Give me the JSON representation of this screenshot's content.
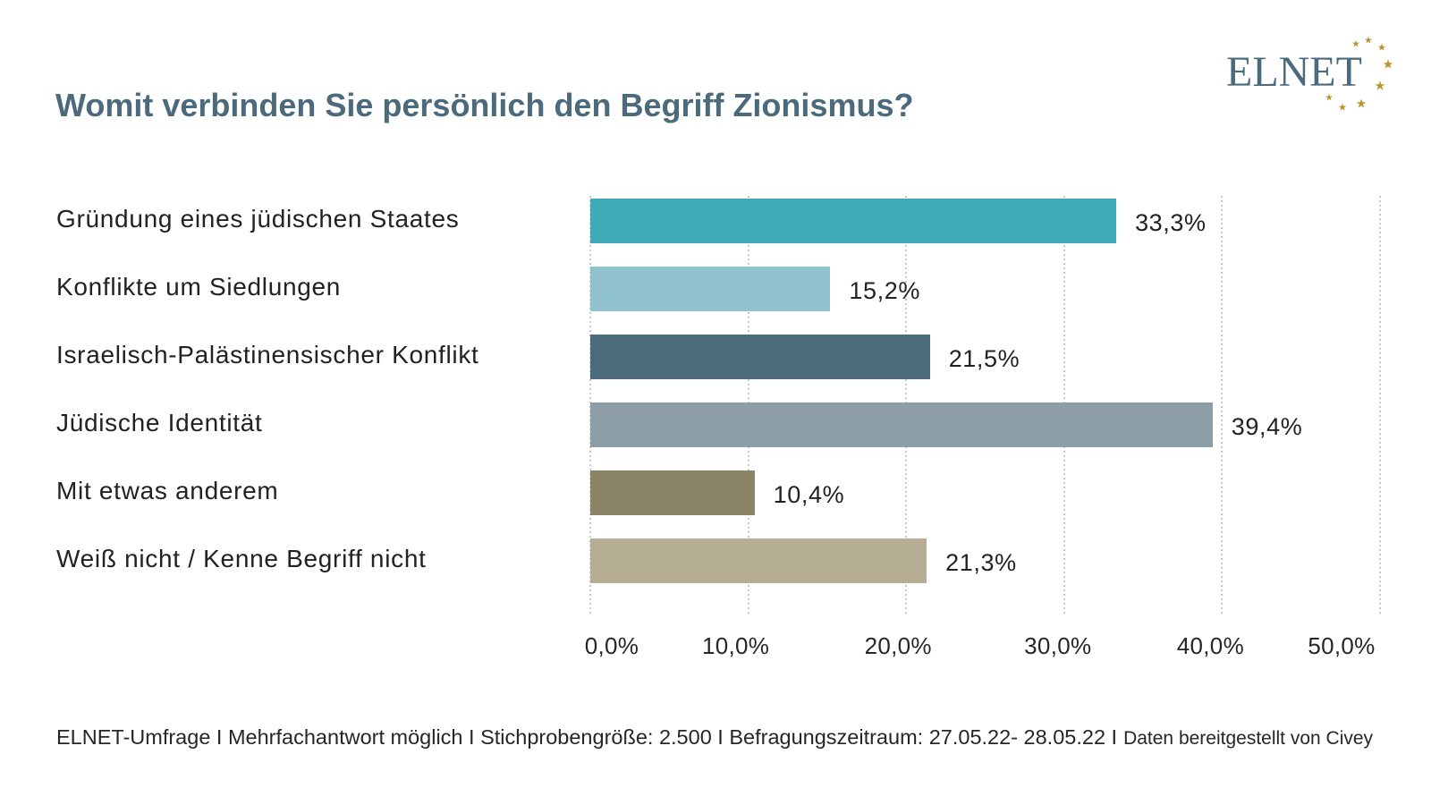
{
  "page": {
    "background": "#ffffff"
  },
  "logo": {
    "text": "ELNET",
    "icon": "star-icon",
    "text_color": "#4b6a7b",
    "star_color": "#b8952f"
  },
  "colors": {
    "title": "#4b6a7b",
    "text": "#222222",
    "grid": "#c6c6c6"
  },
  "chart_data": {
    "type": "bar",
    "horizontal": true,
    "title": "Womit verbinden Sie persönlich den Begriff Zionismus?",
    "categories": [
      "Gründung eines jüdischen Staates",
      "Konflikte um Siedlungen",
      "Israelisch-Palästinensischer Konflikt",
      "Jüdische Identität",
      "Mit etwas anderem",
      "Weiß nicht / Kenne Begriff nicht"
    ],
    "values": [
      33.3,
      15.2,
      21.5,
      39.4,
      10.4,
      21.3
    ],
    "value_labels": [
      "33,3%",
      "15,2%",
      "21,5%",
      "39,4%",
      "10,4%",
      "21,3%"
    ],
    "colors": [
      "#3faab9",
      "#91c3cf",
      "#4b6a7a",
      "#8e9ea8",
      "#8c8466",
      "#b5ae95"
    ],
    "xlabel": "",
    "ylabel": "",
    "xlim": [
      0,
      50
    ],
    "xticks": [
      0,
      10,
      20,
      30,
      40,
      50
    ],
    "xtick_labels": [
      "0,0%",
      "10,0%",
      "20,0%",
      "30,0%",
      "40,0%",
      "50,0%"
    ],
    "grid": true
  },
  "footer": {
    "survey_info": "ELNET-Umfrage I Mehrfachantwort möglich I Stichprobengröße: 2.500 I Befragungszeitraum: 27.05.22- 28.05.22 I",
    "source": "Daten bereitgestellt von Civey"
  }
}
